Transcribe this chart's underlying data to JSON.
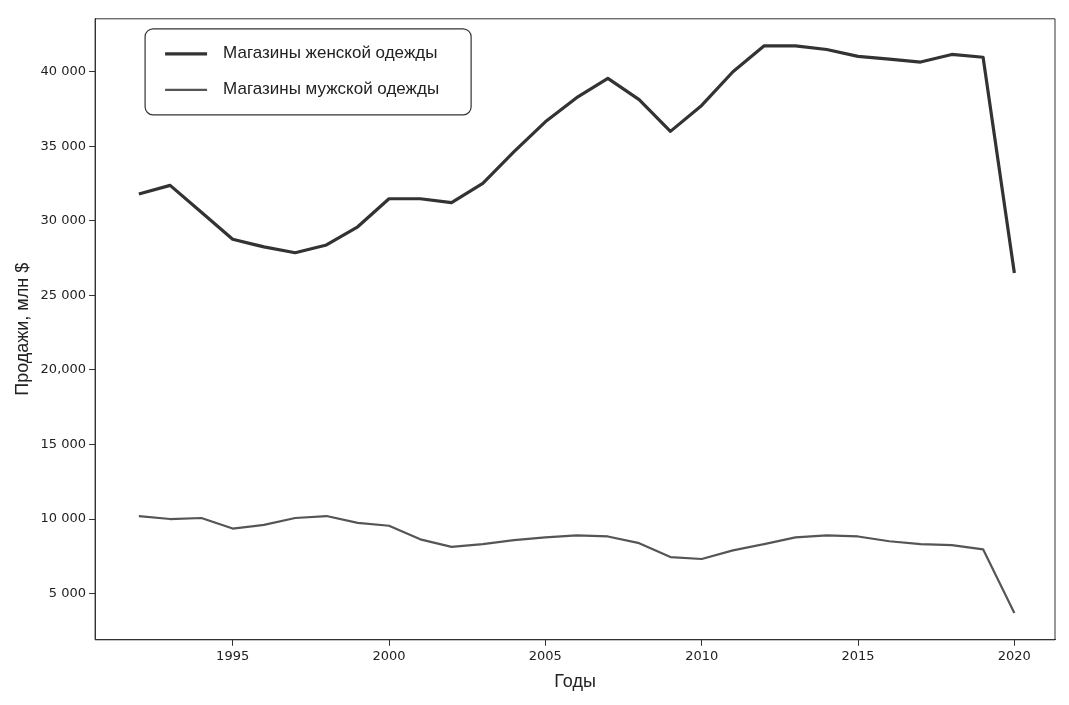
{
  "chart_data": {
    "type": "line",
    "xlabel": "Годы",
    "ylabel": "Продажи, млн $",
    "x": [
      1992,
      1993,
      1994,
      1995,
      1996,
      1997,
      1998,
      1999,
      2000,
      2001,
      2002,
      2003,
      2004,
      2005,
      2006,
      2007,
      2008,
      2009,
      2010,
      2011,
      2012,
      2013,
      2014,
      2015,
      2016,
      2017,
      2018,
      2019,
      2020
    ],
    "series": [
      {
        "name": "Магазины женской одежды",
        "color": "#333333",
        "values": [
          31800,
          32380,
          30570,
          28760,
          28250,
          27860,
          28380,
          29600,
          31480,
          31480,
          31220,
          32510,
          34640,
          36640,
          38260,
          39550,
          38130,
          36000,
          37740,
          40000,
          41740,
          41740,
          41490,
          41030,
          40840,
          40650,
          41160,
          40970,
          26500
        ]
      },
      {
        "name": "Магазины мужской одежды",
        "color": "#555555",
        "values": [
          10200,
          10000,
          10070,
          9360,
          9610,
          10070,
          10200,
          9740,
          9550,
          8640,
          8130,
          8320,
          8580,
          8770,
          8900,
          8830,
          8380,
          7450,
          7320,
          7900,
          8320,
          8770,
          8900,
          8830,
          8510,
          8320,
          8250,
          7970,
          3700
        ]
      }
    ],
    "xlim": [
      1990.6,
      2021.3
    ],
    "xticks": [
      1995,
      2000,
      2005,
      2010,
      2015,
      2020
    ],
    "ylim": [
      1900,
      43550
    ],
    "yticks": [
      {
        "value": 5000,
        "label": "5 000"
      },
      {
        "value": 10000,
        "label": "10 000"
      },
      {
        "value": 15000,
        "label": "15 000"
      },
      {
        "value": 20000,
        "label": "20,000"
      },
      {
        "value": 25000,
        "label": "25 000"
      },
      {
        "value": 30000,
        "label": "30 000"
      },
      {
        "value": 35000,
        "label": "35 000"
      },
      {
        "value": 40000,
        "label": "40 000"
      }
    ],
    "legend": "top left",
    "grid": false,
    "marker": "none",
    "line_style": "solid"
  }
}
